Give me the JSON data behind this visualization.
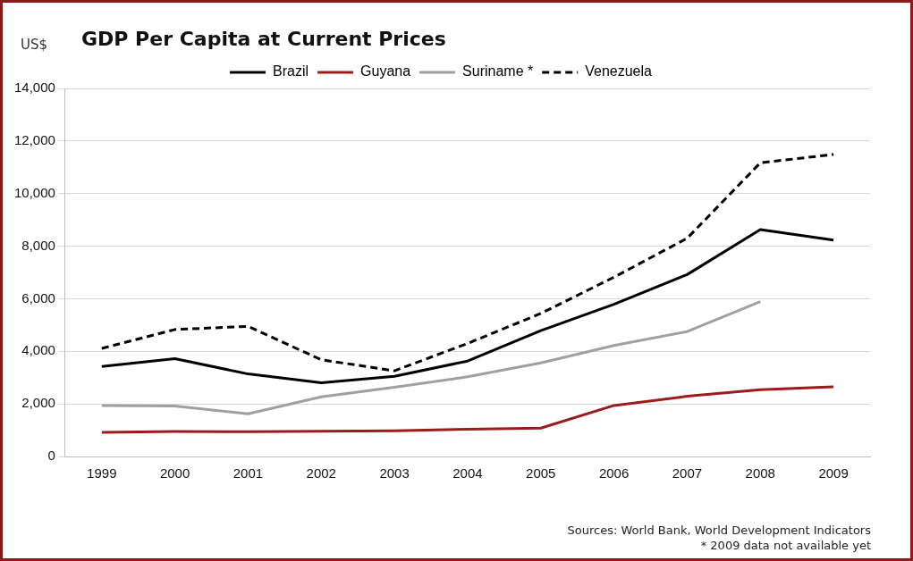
{
  "chart_data": {
    "type": "line",
    "title": "GDP Per Capita at Current Prices",
    "ylabel": "US$",
    "categories": [
      "1999",
      "2000",
      "2001",
      "2002",
      "2003",
      "2004",
      "2005",
      "2006",
      "2007",
      "2008",
      "2009"
    ],
    "series": [
      {
        "name": "Brazil",
        "color": "#000000",
        "values": [
          3420,
          3720,
          3140,
          2800,
          3050,
          3630,
          4790,
          5790,
          6920,
          8630,
          8230
        ]
      },
      {
        "name": "Guyana",
        "color": "#9b1c1c",
        "values": [
          920,
          950,
          940,
          960,
          980,
          1040,
          1080,
          1940,
          2290,
          2540,
          2650
        ]
      },
      {
        "name": "Suriname *",
        "color": "#a0a0a0",
        "values": [
          1940,
          1920,
          1620,
          2270,
          2630,
          3030,
          3560,
          4220,
          4750,
          5890,
          null
        ]
      },
      {
        "name": "Venezuela",
        "color": "#000000",
        "line_style": "dashed",
        "values": [
          4110,
          4830,
          4950,
          3680,
          3260,
          4300,
          5440,
          6820,
          8300,
          11170,
          11490
        ]
      }
    ],
    "ylim": [
      0,
      14000
    ],
    "yticks": [
      {
        "value": 0,
        "label": "0"
      },
      {
        "value": 2000,
        "label": "2,000"
      },
      {
        "value": 4000,
        "label": "4,000"
      },
      {
        "value": 6000,
        "label": "6,000"
      },
      {
        "value": 8000,
        "label": "8,000"
      },
      {
        "value": 10000,
        "label": "10,000"
      },
      {
        "value": 12000,
        "label": "12,000"
      },
      {
        "value": 14000,
        "label": "14,000"
      }
    ],
    "grid": "y",
    "legend": "top",
    "marker": "none",
    "annotations": [
      "Sources: World Bank, World Development Indicators",
      "* 2009 data not available yet"
    ]
  }
}
